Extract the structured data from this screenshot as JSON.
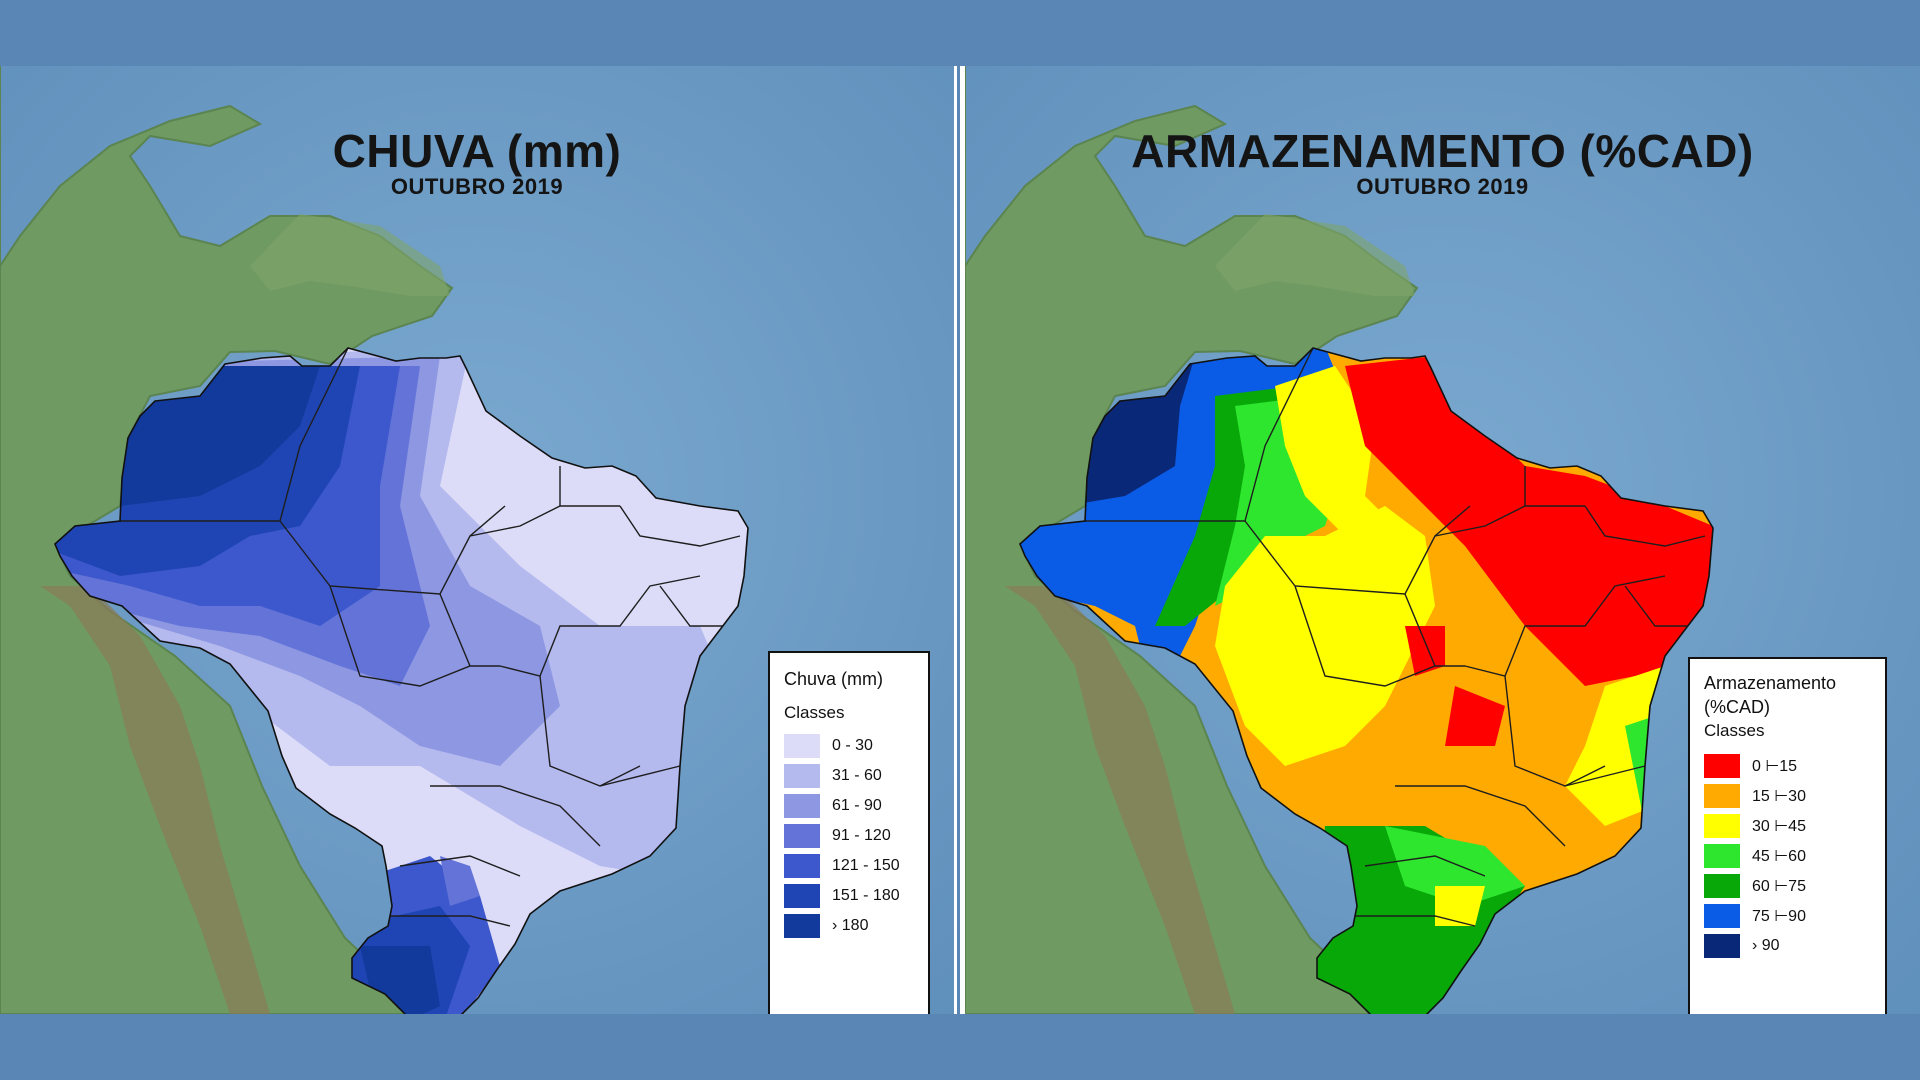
{
  "left_panel": {
    "title": "CHUVA (mm)",
    "subtitle": "OUTUBRO 2019",
    "legend": {
      "title": "Chuva (mm)",
      "classes_label": "Classes",
      "items": [
        {
          "label": "0 - 30",
          "color": "#dcdcf8"
        },
        {
          "label": "31 - 60",
          "color": "#b4b9ee"
        },
        {
          "label": "61 - 90",
          "color": "#8d97e2"
        },
        {
          "label": "91 - 120",
          "color": "#6373d8"
        },
        {
          "label": "121 - 150",
          "color": "#3c58cc"
        },
        {
          "label": "151 - 180",
          "color": "#1f45b4"
        },
        {
          "label": "› 180",
          "color": "#123a9c"
        }
      ]
    }
  },
  "right_panel": {
    "title": "ARMAZENAMENTO (%CAD)",
    "subtitle": "OUTUBRO 2019",
    "legend": {
      "title": "Armazenamento (%CAD)",
      "classes_label": "Classes",
      "items": [
        {
          "label": "0 ⊢15",
          "color": "#ff0000"
        },
        {
          "label": "15 ⊢30",
          "color": "#ffaa00"
        },
        {
          "label": "30 ⊢45",
          "color": "#ffff00"
        },
        {
          "label": "45 ⊢60",
          "color": "#2ee62e"
        },
        {
          "label": "60 ⊢75",
          "color": "#08a808"
        },
        {
          "label": "75 ⊢90",
          "color": "#0a5ce6"
        },
        {
          "label": "› 90",
          "color": "#0a2878"
        }
      ]
    }
  },
  "colors": {
    "ocean": "#6f9cc4",
    "land": "#6f9a62",
    "frame": "#5a86b5"
  }
}
